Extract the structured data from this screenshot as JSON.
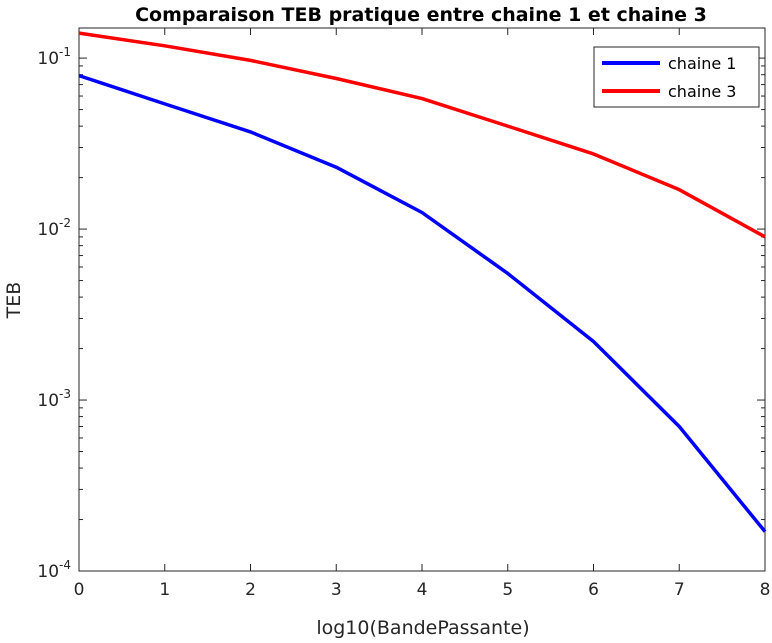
{
  "chart_data": {
    "type": "line",
    "title": "Comparaison TEB pratique entre chaine 1 et chaine 3",
    "xlabel": "log10(BandePassante)",
    "ylabel": "TEB",
    "xlim": [
      0,
      8
    ],
    "ylim": [
      0.0001,
      0.15
    ],
    "yscale": "log",
    "x_ticks": [
      "0",
      "1",
      "2",
      "3",
      "4",
      "5",
      "6",
      "7",
      "8"
    ],
    "y_ticks": [
      {
        "value": 0.1,
        "base": "10",
        "exp": "-1"
      },
      {
        "value": 0.01,
        "base": "10",
        "exp": "-2"
      },
      {
        "value": 0.001,
        "base": "10",
        "exp": "-3"
      },
      {
        "value": 0.0001,
        "base": "10",
        "exp": "-4"
      }
    ],
    "grid": false,
    "legend_position": "top-right",
    "x": [
      0,
      1,
      2,
      3,
      4,
      5,
      6,
      7,
      8
    ],
    "series": [
      {
        "name": "chaine 1",
        "color": "#0000ff",
        "values": [
          0.079,
          0.054,
          0.037,
          0.023,
          0.0125,
          0.0055,
          0.0022,
          0.0007,
          0.00017
        ]
      },
      {
        "name": "chaine 3",
        "color": "#ff0000",
        "values": [
          0.14,
          0.118,
          0.097,
          0.076,
          0.058,
          0.04,
          0.0275,
          0.017,
          0.009
        ]
      }
    ]
  }
}
